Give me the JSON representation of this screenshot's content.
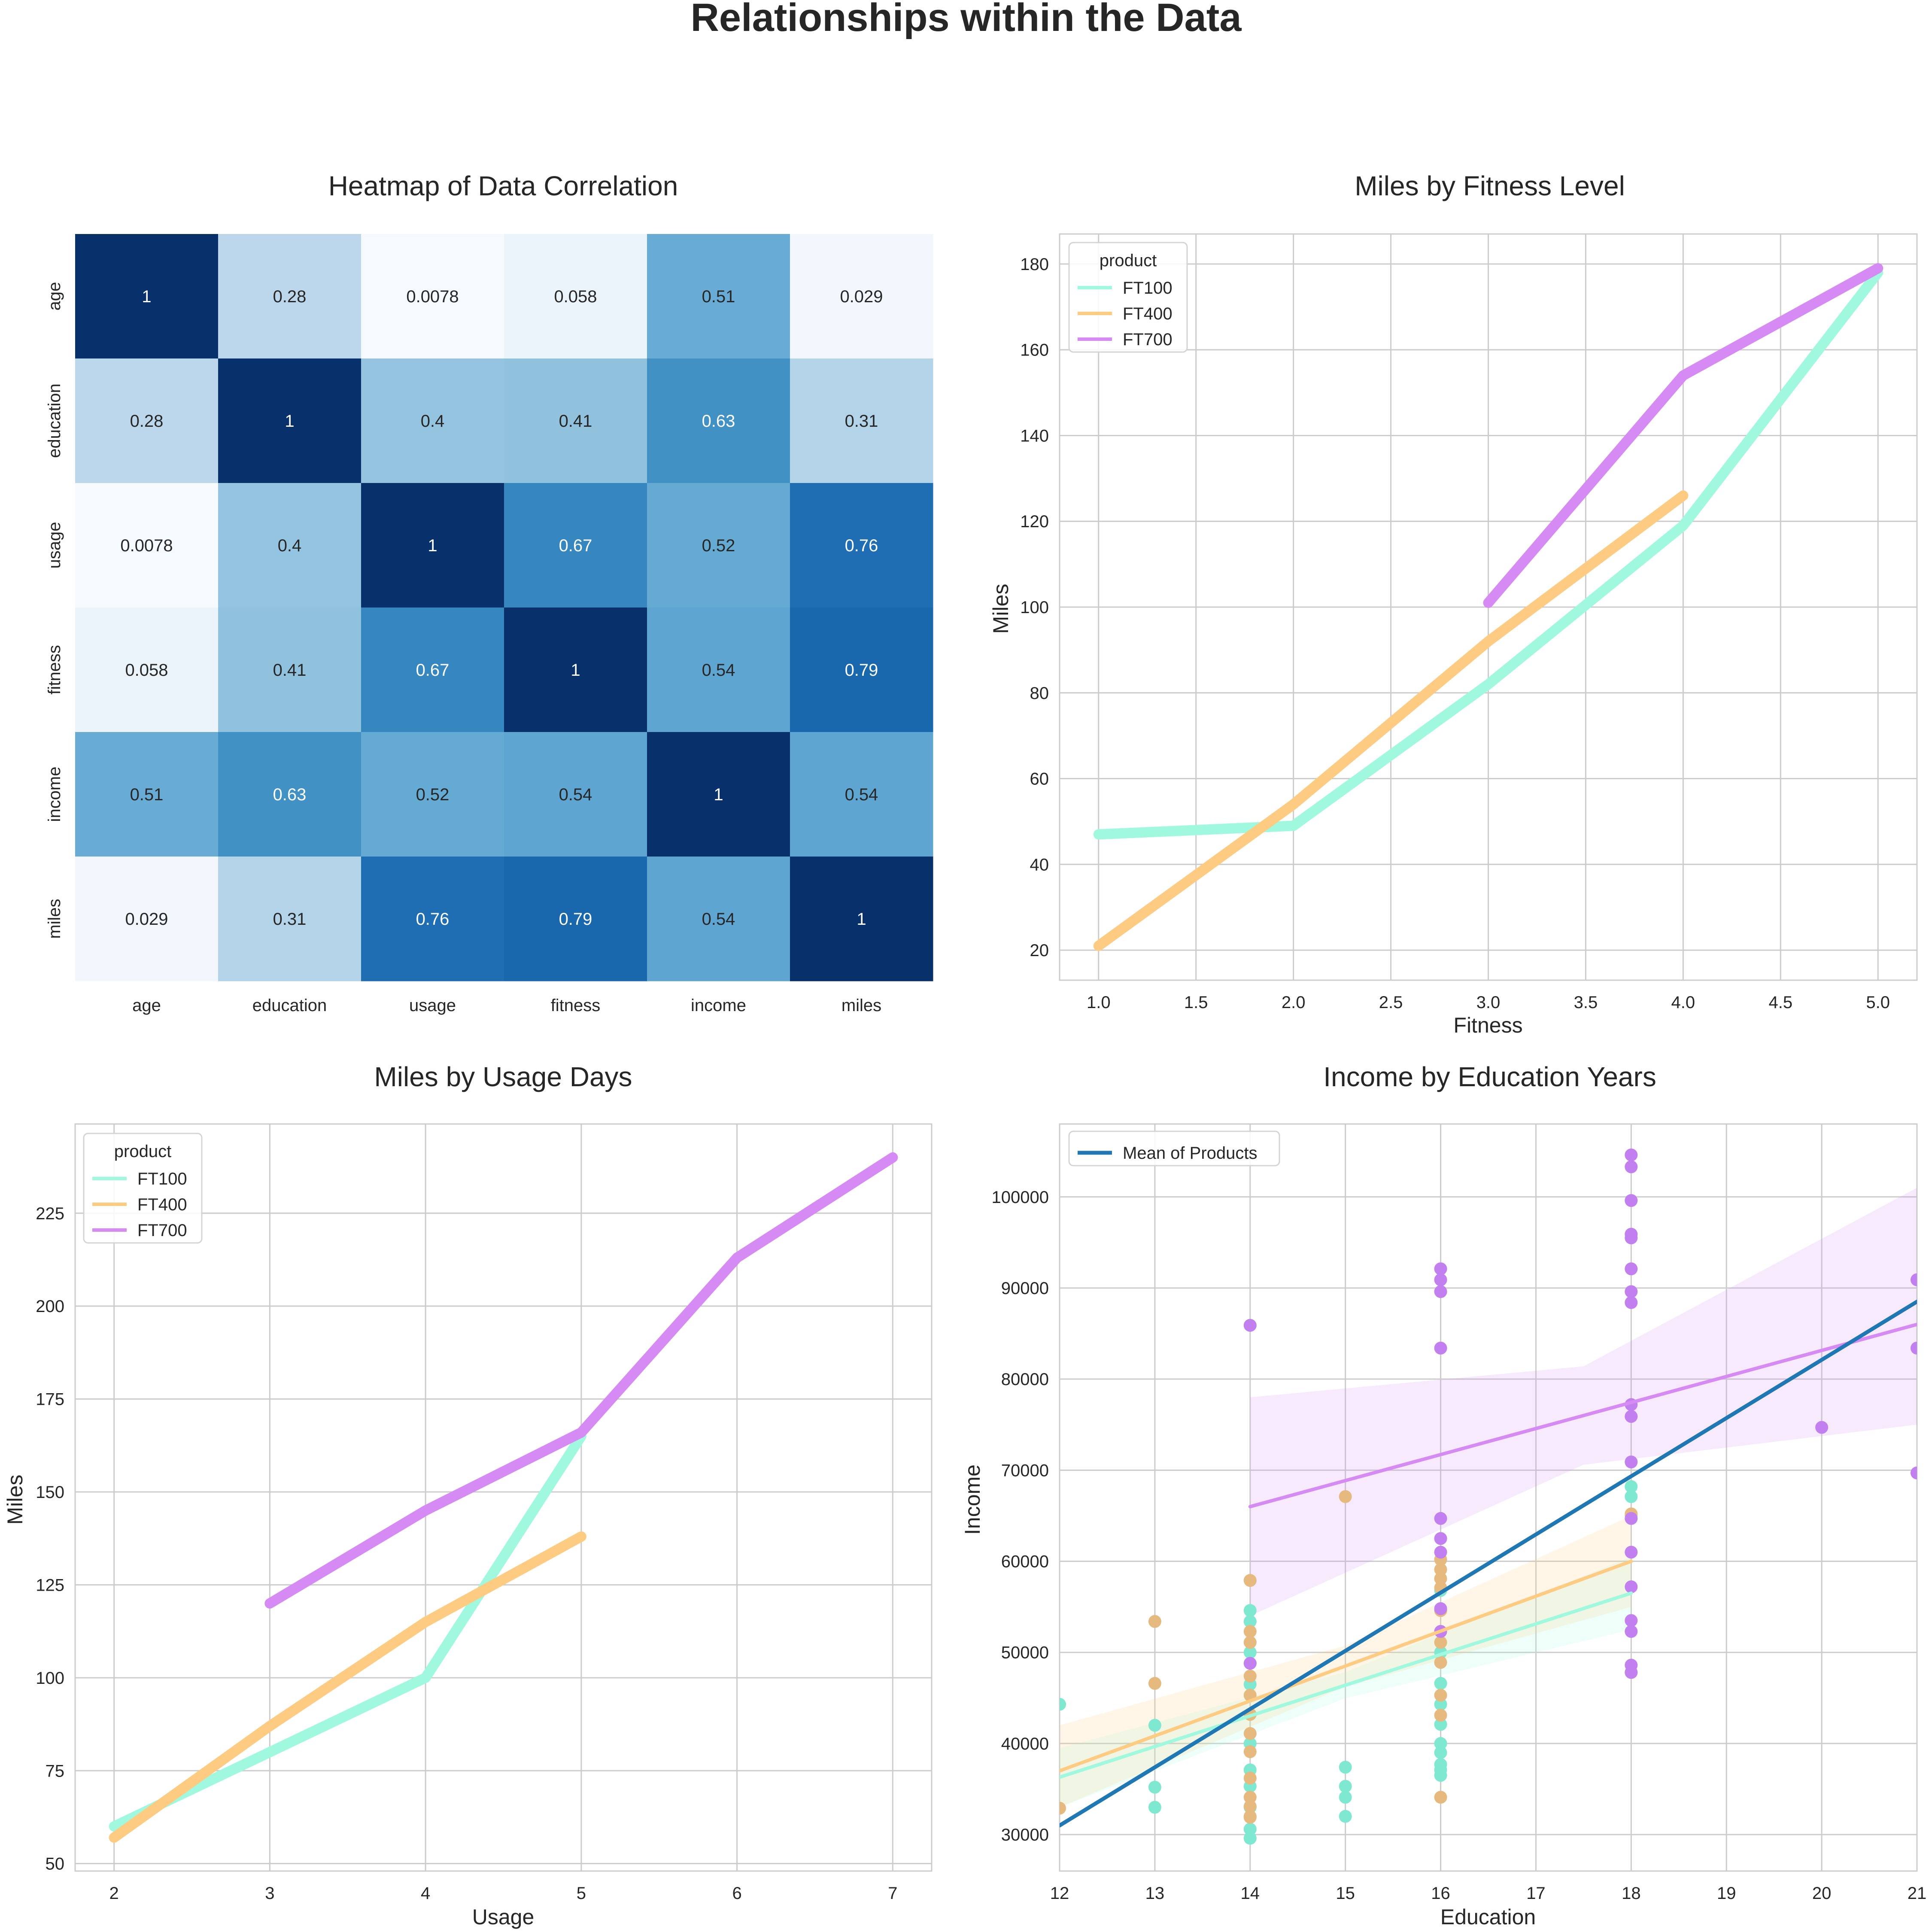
{
  "suptitle": "Relationships within the Data",
  "colors": {
    "FT100": "#a0f9de",
    "FT400": "#fecb82",
    "FT700": "#d68af4",
    "mean": "#1f77b4"
  },
  "chart_data": [
    {
      "type": "heatmap",
      "title": "Heatmap of Data Correlation",
      "colormap": "Blues",
      "labels": [
        "age",
        "education",
        "usage",
        "fitness",
        "income",
        "miles"
      ],
      "values": [
        [
          1,
          0.28,
          0.0078,
          0.058,
          0.51,
          0.029
        ],
        [
          0.28,
          1,
          0.4,
          0.41,
          0.63,
          0.31
        ],
        [
          0.0078,
          0.4,
          1,
          0.67,
          0.52,
          0.76
        ],
        [
          0.058,
          0.41,
          0.67,
          1,
          0.54,
          0.79
        ],
        [
          0.51,
          0.63,
          0.52,
          0.54,
          1,
          0.54
        ],
        [
          0.029,
          0.31,
          0.76,
          0.79,
          0.54,
          1
        ]
      ],
      "value_labels": [
        [
          "1",
          "0.28",
          "0.0078",
          "0.058",
          "0.51",
          "0.029"
        ],
        [
          "0.28",
          "1",
          "0.4",
          "0.41",
          "0.63",
          "0.31"
        ],
        [
          "0.0078",
          "0.4",
          "1",
          "0.67",
          "0.52",
          "0.76"
        ],
        [
          "0.058",
          "0.41",
          "0.67",
          "1",
          "0.54",
          "0.79"
        ],
        [
          "0.51",
          "0.63",
          "0.52",
          "0.54",
          "1",
          "0.54"
        ],
        [
          "0.029",
          "0.31",
          "0.76",
          "0.79",
          "0.54",
          "1"
        ]
      ]
    },
    {
      "type": "line",
      "title": "Miles by Fitness Level",
      "xlabel": "Fitness",
      "ylabel": "Miles",
      "xlim": [
        0.8,
        5.2
      ],
      "ylim": [
        13,
        187
      ],
      "xticks": [
        1.0,
        1.5,
        2.0,
        2.5,
        3.0,
        3.5,
        4.0,
        4.5,
        5.0
      ],
      "xtick_labels": [
        "1.0",
        "1.5",
        "2.0",
        "2.5",
        "3.0",
        "3.5",
        "4.0",
        "4.5",
        "5.0"
      ],
      "yticks": [
        20,
        40,
        60,
        80,
        100,
        120,
        140,
        160,
        180
      ],
      "ytick_labels": [
        "20",
        "40",
        "60",
        "80",
        "100",
        "120",
        "140",
        "160",
        "180"
      ],
      "grid": true,
      "legend": {
        "title": "product",
        "position": "upper-left"
      },
      "series": [
        {
          "name": "FT100",
          "x": [
            1,
            2,
            3,
            4,
            5
          ],
          "y": [
            47,
            49,
            82,
            119,
            178
          ]
        },
        {
          "name": "FT400",
          "x": [
            1,
            2,
            3,
            4
          ],
          "y": [
            21,
            54,
            92,
            126
          ]
        },
        {
          "name": "FT700",
          "x": [
            3,
            4,
            5
          ],
          "y": [
            101,
            154,
            179
          ]
        }
      ]
    },
    {
      "type": "line",
      "title": "Miles by Usage Days",
      "xlabel": "Usage",
      "ylabel": "Miles",
      "xlim": [
        1.75,
        7.25
      ],
      "ylim": [
        48,
        249
      ],
      "xticks": [
        2,
        3,
        4,
        5,
        6,
        7
      ],
      "xtick_labels": [
        "2",
        "3",
        "4",
        "5",
        "6",
        "7"
      ],
      "yticks": [
        50,
        75,
        100,
        125,
        150,
        175,
        200,
        225
      ],
      "ytick_labels": [
        "50",
        "75",
        "100",
        "125",
        "150",
        "175",
        "200",
        "225"
      ],
      "grid": true,
      "legend": {
        "title": "product",
        "position": "upper-left"
      },
      "series": [
        {
          "name": "FT100",
          "x": [
            2,
            3,
            4,
            5
          ],
          "y": [
            60,
            80,
            100,
            165
          ]
        },
        {
          "name": "FT400",
          "x": [
            2,
            3,
            4,
            5
          ],
          "y": [
            57,
            87,
            115,
            138
          ]
        },
        {
          "name": "FT700",
          "x": [
            3,
            4,
            5,
            6,
            7
          ],
          "y": [
            120,
            145,
            166,
            213,
            240
          ]
        }
      ]
    },
    {
      "type": "scatter",
      "title": "Income by Education Years",
      "xlabel": "Education",
      "ylabel": "Income",
      "xlim": [
        12,
        21
      ],
      "ylim": [
        26000,
        108000
      ],
      "xticks": [
        12,
        13,
        14,
        15,
        16,
        17,
        18,
        19,
        20,
        21
      ],
      "xtick_labels": [
        "12",
        "13",
        "14",
        "15",
        "16",
        "17",
        "18",
        "19",
        "20",
        "21"
      ],
      "yticks": [
        30000,
        40000,
        50000,
        60000,
        70000,
        80000,
        90000,
        100000
      ],
      "ytick_labels": [
        "30000",
        "40000",
        "50000",
        "60000",
        "70000",
        "80000",
        "90000",
        "100000"
      ],
      "grid": true,
      "legend": {
        "position": "upper-left",
        "entries": [
          "Mean of Products"
        ]
      },
      "mean_line": {
        "name": "Mean of Products",
        "x": [
          12,
          21
        ],
        "y": [
          31000,
          88500
        ]
      },
      "regressions": [
        {
          "series": "FT100",
          "x": [
            12,
            18
          ],
          "y": [
            36300,
            56500
          ],
          "band_lo": [
            33000,
            52500
          ],
          "band_hi": [
            39500,
            60500
          ]
        },
        {
          "series": "FT400",
          "x": [
            12,
            18
          ],
          "y": [
            37000,
            60000
          ],
          "band_lo": [
            33000,
            55000
          ],
          "band_hi": [
            42000,
            65000
          ]
        },
        {
          "series": "FT700",
          "x": [
            14,
            21
          ],
          "y": [
            66000,
            86000
          ],
          "band_lo": [
            54000,
            75000
          ],
          "band_hi": [
            78000,
            101000
          ]
        }
      ],
      "series": [
        {
          "name": "FT100",
          "x": [
            12,
            13,
            13,
            13,
            14,
            14,
            14,
            14,
            14,
            14,
            14,
            14,
            14,
            14,
            14,
            14,
            15,
            15,
            15,
            15,
            16,
            16,
            16,
            16,
            16,
            16,
            16,
            16,
            16,
            16,
            16,
            18,
            18,
            18
          ],
          "y": [
            44300,
            42000,
            35200,
            33000,
            54600,
            53400,
            50000,
            48800,
            46500,
            43200,
            40000,
            37100,
            35300,
            33000,
            30600,
            29600,
            37400,
            35300,
            34100,
            32000,
            56800,
            54600,
            50000,
            46600,
            44300,
            42100,
            40000,
            39000,
            37700,
            37100,
            36500,
            68200,
            67100,
            65000
          ]
        },
        {
          "series_note": "",
          "name": "FT400",
          "x": [
            12,
            13,
            13,
            14,
            14,
            14,
            14,
            14,
            14,
            14,
            14,
            14,
            14,
            14,
            14,
            14,
            15,
            16,
            16,
            16,
            16,
            16,
            16,
            16,
            16,
            16,
            16,
            16,
            18,
            18
          ],
          "y": [
            32900,
            53400,
            46600,
            57900,
            52300,
            51100,
            47400,
            45300,
            43200,
            41100,
            39100,
            36200,
            34100,
            33100,
            32000,
            31900,
            67100,
            60200,
            59100,
            58100,
            57100,
            54600,
            52300,
            51100,
            48900,
            45300,
            43100,
            34100,
            65200,
            47800
          ]
        },
        {
          "name": "FT700",
          "x": [
            14,
            14,
            16,
            16,
            16,
            16,
            16,
            16,
            16,
            16,
            16,
            18,
            18,
            18,
            18,
            18,
            18,
            18,
            18,
            18,
            18,
            18,
            18,
            18,
            18,
            18,
            18,
            18,
            18,
            20,
            21,
            21,
            21
          ],
          "y": [
            85900,
            48800,
            92100,
            90900,
            89600,
            83400,
            64700,
            62500,
            61000,
            54800,
            52300,
            104600,
            103300,
            99600,
            95900,
            95500,
            92100,
            89600,
            88400,
            77200,
            75900,
            70900,
            64700,
            61000,
            57200,
            53500,
            52300,
            48600,
            47800,
            74700,
            90900,
            83400,
            69700
          ]
        }
      ]
    }
  ]
}
